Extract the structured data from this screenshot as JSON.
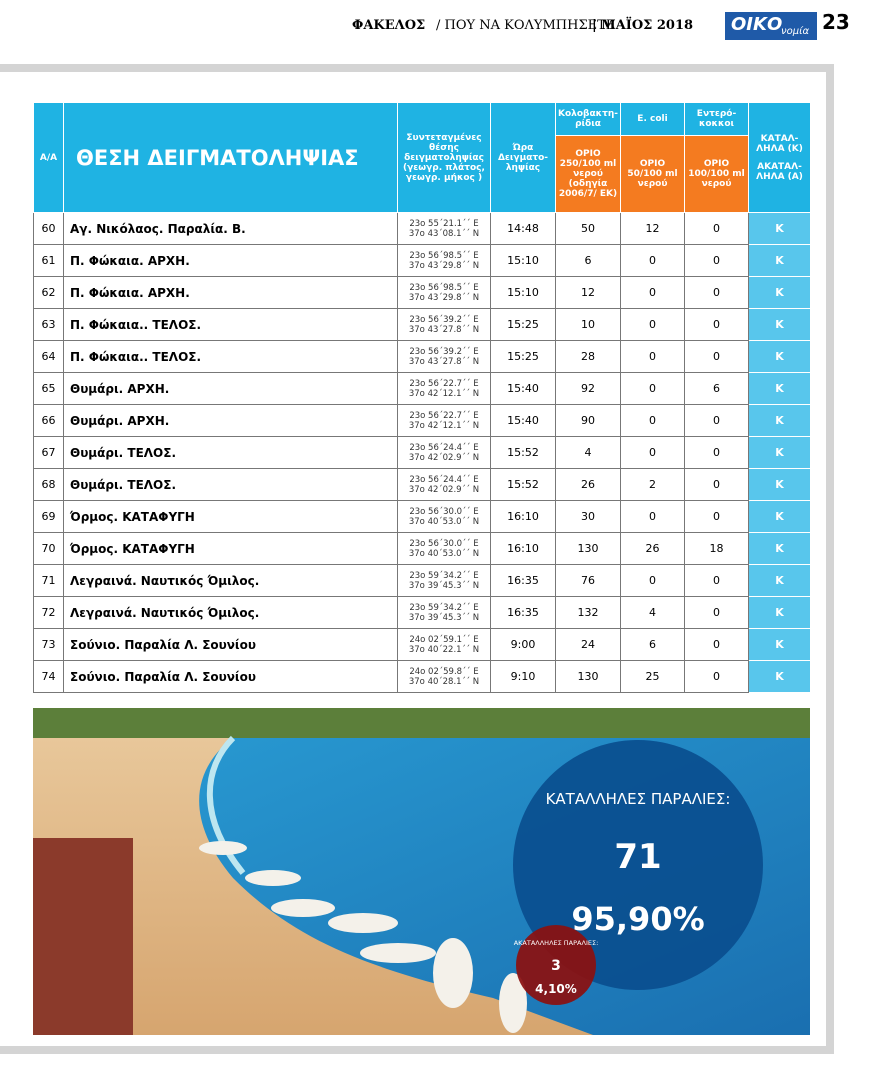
{
  "header": {
    "section": "ΦΑΚΕΛΟΣ",
    "topic": "/ ΠΟΥ ΝΑ ΚΟΛΥΜΠΗΣΕΤΕ",
    "issue": "| ΜΑΪΟΣ 2018",
    "logo": "ΟΙΚΟ",
    "logo_sub": "νομία",
    "page": "23"
  },
  "table": {
    "columns": {
      "number": "Α/Α",
      "location": "ΘΕΣΗ ΔΕΙΓΜΑΤΟΛΗΨΙΑΣ",
      "coordinates": "Συντεταγμένες θέσης δειγματοληψίας (γεωγρ. πλάτος, γεωγρ. μήκος )",
      "time": "Ώρα Δειγματο-ληψίας",
      "coliforms": "Κολοβακτη-ρίδια",
      "coliforms_limit": "ΟΡΙΟ 250/100 ml νερού (οδηγία 2006/7/ ΕΚ)",
      "ecoli": "E. coli",
      "ecoli_limit": "ΟΡΙΟ 50/100 ml νερού",
      "enterococci": "Εντερό-κοκκοι",
      "enterococci_limit": "ΟΡΙΟ 100/100 ml νερού",
      "suitable": "ΚΑΤΑΛ-ΛΗΛΑ (Κ)",
      "unsuitable": "ΑΚΑΤΑΛ-ΛΗΛΑ (Α)"
    },
    "rows": [
      [
        60,
        "Αγ. Νικόλαος. Παραλία. Β.",
        "23ο 55΄21.1΄΄ Ε",
        "37ο 43΄08.1΄΄ Ν",
        "14:48",
        50,
        12,
        0,
        "Κ"
      ],
      [
        61,
        "Π. Φώκαια. ΑΡΧΗ.",
        "23ο 56΄98.5΄΄ Ε",
        "37ο 43΄29.8΄΄ Ν",
        "15:10",
        6,
        0,
        0,
        "Κ"
      ],
      [
        62,
        "Π. Φώκαια. ΑΡΧΗ.",
        "23ο 56΄98.5΄΄ Ε",
        "37ο 43΄29.8΄΄ Ν",
        "15:10",
        12,
        0,
        0,
        "Κ"
      ],
      [
        63,
        "Π. Φώκαια.. ΤΕΛΟΣ.",
        "23ο 56΄39.2΄΄ Ε",
        "37ο 43΄27.8΄΄ Ν",
        "15:25",
        10,
        0,
        0,
        "Κ"
      ],
      [
        64,
        "Π. Φώκαια.. ΤΕΛΟΣ.",
        "23ο 56΄39.2΄΄ Ε",
        "37ο 43΄27.8΄΄ Ν",
        "15:25",
        28,
        0,
        0,
        "Κ"
      ],
      [
        65,
        "Θυμάρι. ΑΡΧΗ.",
        "23ο 56΄22.7΄΄ Ε",
        "37ο 42΄12.1΄΄ Ν",
        "15:40",
        92,
        0,
        6,
        "Κ"
      ],
      [
        66,
        "Θυμάρι. ΑΡΧΗ.",
        "23ο 56΄22.7΄΄ Ε",
        "37ο 42΄12.1΄΄ Ν",
        "15:40",
        90,
        0,
        0,
        "Κ"
      ],
      [
        67,
        "Θυμάρι. ΤΕΛΟΣ.",
        "23ο 56΄24.4΄΄ Ε",
        "37ο 42΄02.9΄΄ Ν",
        "15:52",
        4,
        0,
        0,
        "Κ"
      ],
      [
        68,
        "Θυμάρι. ΤΕΛΟΣ.",
        "23ο 56΄24.4΄΄ Ε",
        "37ο 42΄02.9΄΄ Ν",
        "15:52",
        26,
        2,
        0,
        "Κ"
      ],
      [
        69,
        "Όρμος. ΚΑΤΑΦΥΓΗ",
        "23ο 56΄30.0΄΄ Ε",
        "37ο 40΄53.0΄΄ Ν",
        "16:10",
        30,
        0,
        0,
        "Κ"
      ],
      [
        70,
        "Όρμος. ΚΑΤΑΦΥΓΗ",
        "23ο 56΄30.0΄΄ Ε",
        "37ο 40΄53.0΄΄ Ν",
        "16:10",
        130,
        26,
        18,
        "Κ"
      ],
      [
        71,
        "Λεγραινά. Ναυτικός Όμιλος.",
        "23ο 59΄34.2΄΄ Ε",
        "37ο 39΄45.3΄΄ Ν",
        "16:35",
        76,
        0,
        0,
        "Κ"
      ],
      [
        72,
        "Λεγραινά. Ναυτικός Όμιλος.",
        "23ο 59΄34.2΄΄ Ε",
        "37ο 39΄45.3΄΄ Ν",
        "16:35",
        132,
        4,
        0,
        "Κ"
      ],
      [
        73,
        "Σούνιο. Παραλία Λ. Σουνίου",
        "24ο 02΄59.1΄΄ Ε",
        "37ο 40΄22.1΄΄ Ν",
        "9:00",
        24,
        6,
        0,
        "Κ"
      ],
      [
        74,
        "Σούνιο. Παραλία Λ. Σουνίου",
        "24ο 02΄59.8΄΄ Ε",
        "37ο 40΄28.1΄΄ Ν",
        "9:10",
        130,
        25,
        0,
        "Κ"
      ]
    ]
  },
  "infographic": {
    "suitable_label": "ΚΑΤΑΛΛΗΛΕΣ ΠΑΡΑΛΙΕΣ:",
    "suitable_count": 71,
    "suitable_percent": "95,90%",
    "unsuitable_label": "ΑΚΑΤΑΛΛΗΛΕΣ ΠΑΡΑΛΙΕΣ:",
    "unsuitable_count": 3,
    "unsuitable_percent": "4,10%"
  }
}
